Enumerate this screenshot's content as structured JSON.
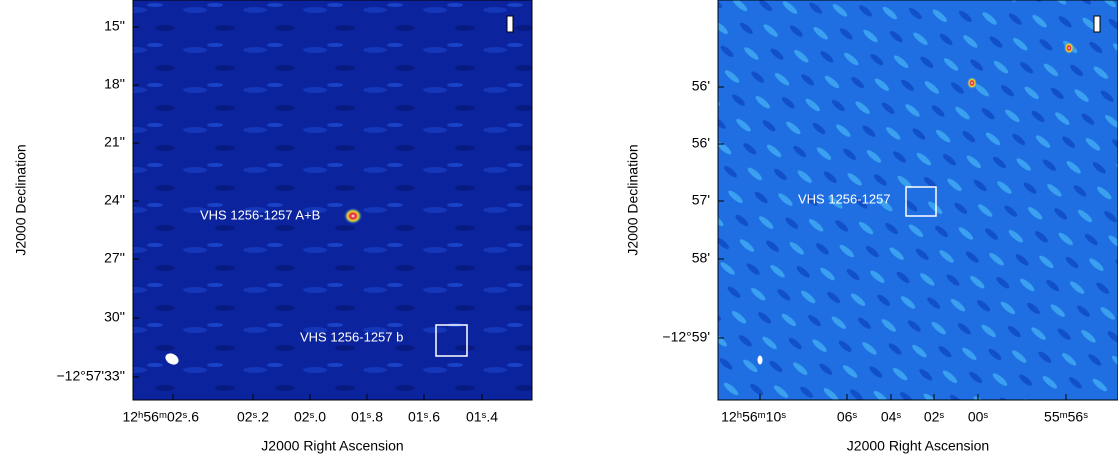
{
  "panels": [
    {
      "ylabel": "J2000 Declination",
      "xlabel": "J2000 Right Ascension",
      "yticks": [
        "15''",
        "18''",
        "21''",
        "24''",
        "27''",
        "30''",
        "−12°57'33''"
      ],
      "xticks": [
        "12ʰ56ᵐ02ˢ.6",
        "02ˢ.2",
        "02ˢ.0",
        "01ˢ.8",
        "01ˢ.6",
        "01ˢ.4"
      ],
      "annotations": [
        "VHS 1256-1257 A+B",
        "VHS 1256-1257 b"
      ]
    },
    {
      "ylabel": "J2000 Declination",
      "xlabel": "J2000 Right Ascension",
      "yticks": [
        "56'",
        "56'",
        "57'",
        "58'",
        "−12°59'"
      ],
      "xticks": [
        "12ʰ56ᵐ10ˢ",
        "06ˢ",
        "04ˢ",
        "02ˢ",
        "00ˢ",
        "55ᵐ56ˢ"
      ],
      "annotations": [
        "VHS 1256-1257"
      ]
    }
  ]
}
